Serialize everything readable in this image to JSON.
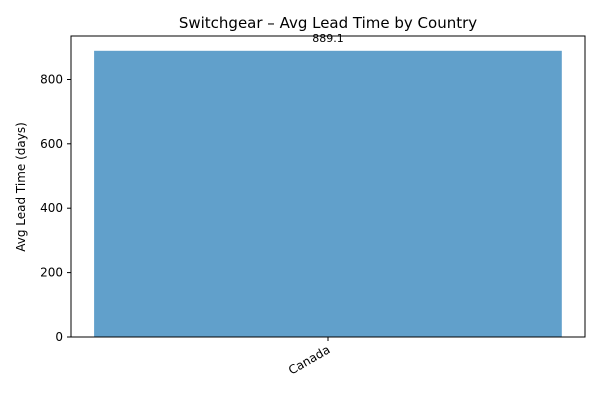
{
  "chart_data": {
    "type": "bar",
    "title": "Switchgear – Avg Lead Time by Country",
    "xlabel": "",
    "ylabel": "Avg Lead Time (days)",
    "categories": [
      "Canada"
    ],
    "series": [
      {
        "values": [
          889.1
        ]
      }
    ],
    "data_labels": [
      "889.1"
    ],
    "ylim": [
      0,
      935
    ],
    "yticks": [
      0,
      200,
      400,
      600,
      800
    ],
    "grid": false,
    "legend": "none",
    "colors": {
      "bar": "#61a0cb",
      "axis": "#000000"
    }
  }
}
